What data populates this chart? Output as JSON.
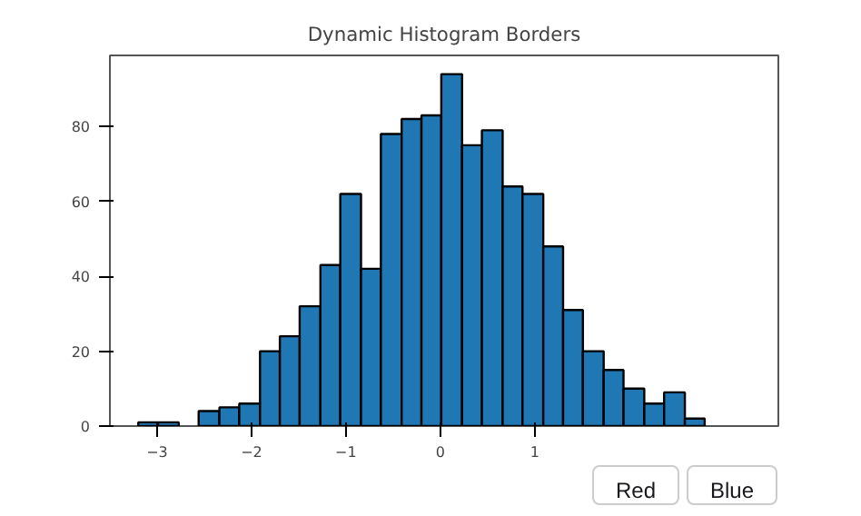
{
  "chart_data": {
    "type": "histogram",
    "title": "Dynamic Histogram Borders",
    "bins": [
      -3.2,
      -2.99,
      -2.77,
      -2.56,
      -2.34,
      -2.13,
      -1.91,
      -1.7,
      -1.49,
      -1.27,
      -1.06,
      -0.84,
      -0.63,
      -0.41,
      -0.2,
      0.01,
      0.23,
      0.44,
      0.66,
      0.87,
      1.09,
      1.3,
      1.51,
      1.73,
      1.94,
      2.16,
      2.37,
      2.59,
      2.8
    ],
    "values": [
      1,
      1,
      0,
      4,
      5,
      6,
      20,
      24,
      32,
      43,
      62,
      42,
      78,
      82,
      83,
      94,
      75,
      79,
      64,
      62,
      48,
      31,
      20,
      15,
      10,
      6,
      9,
      2
    ],
    "color": "#1f77b4",
    "xlim": [
      -3.5,
      3.58
    ],
    "ylim": [
      0,
      99
    ],
    "xticks": [
      -3,
      -2,
      -1,
      0,
      1
    ],
    "yticks": [
      0,
      20,
      40,
      60,
      80
    ],
    "grid": false,
    "annotations": [
      "Red",
      "Blue"
    ]
  }
}
